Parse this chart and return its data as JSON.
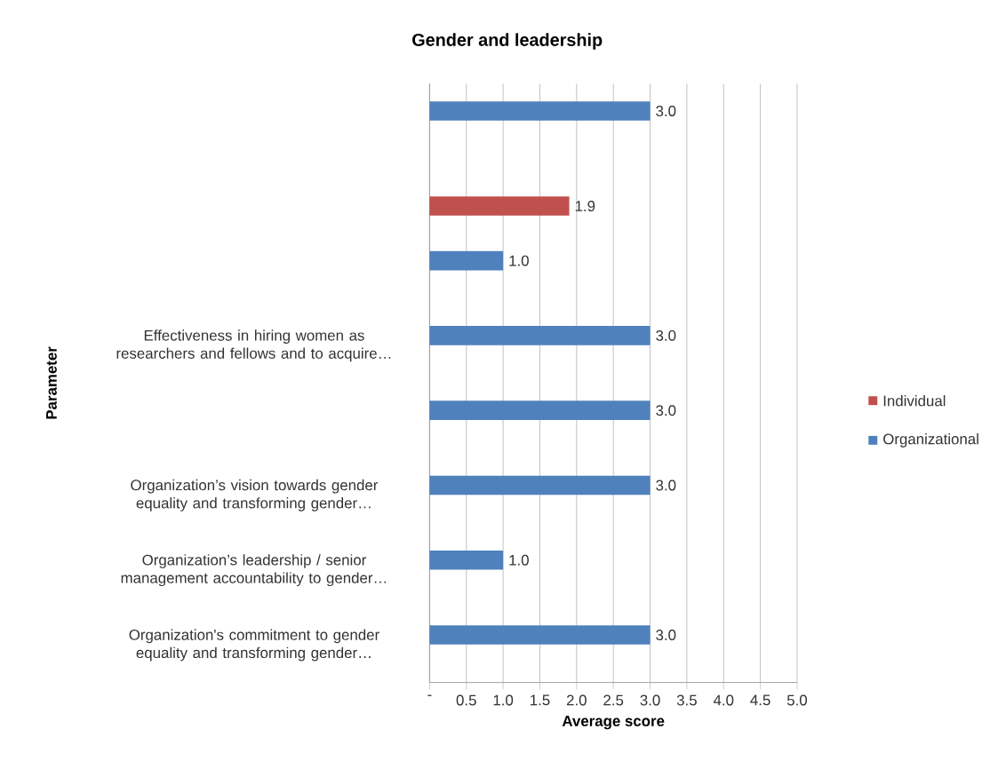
{
  "chart_data": {
    "type": "bar",
    "orientation": "horizontal",
    "title": "Gender and leadership",
    "xlabel": "Average score",
    "ylabel": "Parameter",
    "categories": [
      null,
      null,
      null,
      "Effectiveness in hiring women as researchers and fellows and to acquire…",
      null,
      "Organization’s vision towards gender equality and transforming gender…",
      "Organization’s leadership / senior management accountability to gender…",
      "Organization's commitment to gender equality and transforming gender…"
    ],
    "series": [
      {
        "name": "Individual",
        "color": "#c0504d",
        "values": [
          null,
          1.9,
          null,
          null,
          null,
          null,
          null,
          null
        ],
        "value_labels": [
          null,
          "1.9",
          null,
          null,
          null,
          null,
          null,
          null
        ]
      },
      {
        "name": "Organizational",
        "color": "#4f81bd",
        "values": [
          3.0,
          null,
          1.0,
          3.0,
          3.0,
          3.0,
          1.0,
          3.0
        ],
        "value_labels": [
          "3.0",
          null,
          "1.0",
          "3.0",
          "3.0",
          "3.0",
          "1.0",
          "3.0"
        ]
      }
    ],
    "xlim": [
      0,
      5
    ],
    "xticks": [
      {
        "value": 0,
        "label": "-"
      },
      {
        "value": 0.5,
        "label": "0.5"
      },
      {
        "value": 1,
        "label": "1.0"
      },
      {
        "value": 1.5,
        "label": "1.5"
      },
      {
        "value": 2,
        "label": "2.0"
      },
      {
        "value": 2.5,
        "label": "2.5"
      },
      {
        "value": 3,
        "label": "3.0"
      },
      {
        "value": 3.5,
        "label": "3.5"
      },
      {
        "value": 4,
        "label": "4.0"
      },
      {
        "value": 4.5,
        "label": "4.5"
      },
      {
        "value": 5,
        "label": "5.0"
      }
    ],
    "grid": "x",
    "legend": "right"
  }
}
